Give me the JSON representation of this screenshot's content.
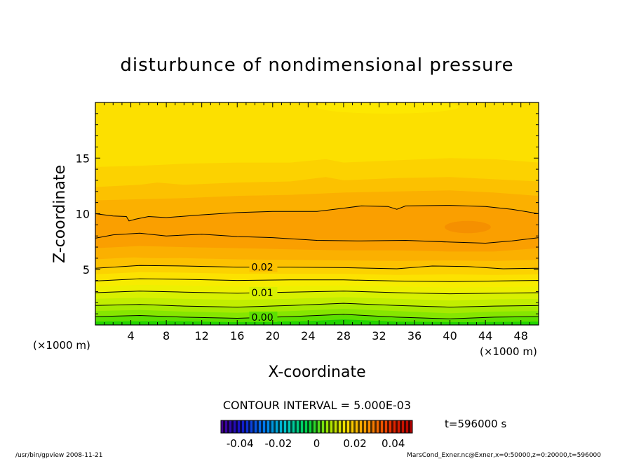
{
  "chart_data": {
    "type": "heatmap",
    "subtype": "filled-contour",
    "title": "disturbunce of nondimensional pressure",
    "xlabel": "X-coordinate",
    "ylabel": "Z-coordinate",
    "x_unit_label": "(×1000 m)",
    "y_unit_label": "(×1000 m)",
    "xlim": [
      0,
      50
    ],
    "ylim": [
      0,
      20
    ],
    "x_ticks": [
      4,
      8,
      12,
      16,
      20,
      24,
      28,
      32,
      36,
      40,
      44,
      48
    ],
    "y_ticks": [
      5,
      10,
      15
    ],
    "contour_interval_text": "CONTOUR INTERVAL = 5.000E-03",
    "time_label": "t=596000 s",
    "colorbar": {
      "ticks": [
        "-0.04",
        "-0.02",
        "0",
        "0.02",
        "0.04"
      ],
      "range": [
        -0.05,
        0.05
      ]
    },
    "contour_labels": [
      {
        "text": "0.02",
        "x": 17.6,
        "z": 5.2
      },
      {
        "text": "0.01",
        "x": 17.6,
        "z": 2.9
      },
      {
        "text": "0.00",
        "x": 17.6,
        "z": 0.7
      }
    ],
    "contours": [
      {
        "level": 0.0,
        "points": [
          [
            0,
            0.75
          ],
          [
            5,
            0.85
          ],
          [
            10,
            0.7
          ],
          [
            16,
            0.6
          ],
          [
            22,
            0.75
          ],
          [
            28,
            0.95
          ],
          [
            34,
            0.7
          ],
          [
            40,
            0.55
          ],
          [
            45,
            0.7
          ],
          [
            50,
            0.75
          ]
        ]
      },
      {
        "level": 0.005,
        "points": [
          [
            0,
            1.75
          ],
          [
            5,
            1.85
          ],
          [
            10,
            1.7
          ],
          [
            16,
            1.6
          ],
          [
            22,
            1.75
          ],
          [
            28,
            1.95
          ],
          [
            34,
            1.75
          ],
          [
            40,
            1.6
          ],
          [
            45,
            1.7
          ],
          [
            50,
            1.75
          ]
        ]
      },
      {
        "level": 0.01,
        "points": [
          [
            0,
            2.9
          ],
          [
            5,
            3.05
          ],
          [
            10,
            2.95
          ],
          [
            16,
            2.85
          ],
          [
            22,
            2.95
          ],
          [
            28,
            3.05
          ],
          [
            34,
            2.9
          ],
          [
            40,
            2.8
          ],
          [
            45,
            2.85
          ],
          [
            50,
            2.9
          ]
        ]
      },
      {
        "level": 0.015,
        "points": [
          [
            0,
            3.95
          ],
          [
            5,
            4.15
          ],
          [
            10,
            4.1
          ],
          [
            16,
            4.0
          ],
          [
            22,
            4.05
          ],
          [
            28,
            4.05
          ],
          [
            34,
            3.95
          ],
          [
            40,
            3.9
          ],
          [
            45,
            3.95
          ],
          [
            50,
            4.0
          ]
        ]
      },
      {
        "level": 0.02,
        "points": [
          [
            0,
            5.1
          ],
          [
            5,
            5.35
          ],
          [
            10,
            5.3
          ],
          [
            16,
            5.2
          ],
          [
            22,
            5.2
          ],
          [
            28,
            5.15
          ],
          [
            34,
            5.05
          ],
          [
            38,
            5.3
          ],
          [
            42,
            5.25
          ],
          [
            46,
            5.05
          ],
          [
            50,
            5.1
          ]
        ]
      },
      {
        "level": 0.025,
        "points": [
          [
            0,
            7.8
          ],
          [
            2,
            8.1
          ],
          [
            5,
            8.25
          ],
          [
            8,
            8.0
          ],
          [
            12,
            8.15
          ],
          [
            16,
            7.95
          ],
          [
            20,
            7.85
          ],
          [
            25,
            7.6
          ],
          [
            30,
            7.55
          ],
          [
            35,
            7.6
          ],
          [
            40,
            7.45
          ],
          [
            44,
            7.35
          ],
          [
            47,
            7.55
          ],
          [
            50,
            7.85
          ]
        ]
      },
      {
        "level": 0.025,
        "points": [
          [
            0,
            10.0
          ],
          [
            2,
            9.8
          ],
          [
            3.5,
            9.75
          ],
          [
            3.8,
            9.35
          ],
          [
            4.5,
            9.5
          ],
          [
            6,
            9.75
          ],
          [
            8,
            9.65
          ],
          [
            12,
            9.9
          ],
          [
            16,
            10.1
          ],
          [
            20,
            10.2
          ],
          [
            25,
            10.2
          ],
          [
            28,
            10.5
          ],
          [
            30,
            10.7
          ],
          [
            33,
            10.65
          ],
          [
            34,
            10.4
          ],
          [
            35,
            10.7
          ],
          [
            40,
            10.75
          ],
          [
            44,
            10.65
          ],
          [
            47,
            10.4
          ],
          [
            50,
            10.0
          ]
        ]
      }
    ],
    "filled_bands": [
      {
        "level": -0.005,
        "color": "#22d400",
        "upper": [
          [
            0,
            0.3
          ],
          [
            8,
            0.35
          ],
          [
            16,
            0.25
          ],
          [
            24,
            0.35
          ],
          [
            28,
            0.5
          ],
          [
            34,
            0.3
          ],
          [
            42,
            0.25
          ],
          [
            50,
            0.3
          ]
        ]
      },
      {
        "level": 0.0,
        "color": "#5ce000",
        "upper": [
          [
            0,
            0.75
          ],
          [
            5,
            0.85
          ],
          [
            10,
            0.7
          ],
          [
            16,
            0.6
          ],
          [
            22,
            0.75
          ],
          [
            28,
            0.95
          ],
          [
            34,
            0.7
          ],
          [
            40,
            0.55
          ],
          [
            45,
            0.7
          ],
          [
            50,
            0.75
          ]
        ]
      },
      {
        "level": 0.0025,
        "color": "#86e600",
        "upper": [
          [
            0,
            1.25
          ],
          [
            5,
            1.35
          ],
          [
            10,
            1.2
          ],
          [
            16,
            1.1
          ],
          [
            22,
            1.25
          ],
          [
            28,
            1.45
          ],
          [
            34,
            1.25
          ],
          [
            40,
            1.05
          ],
          [
            45,
            1.2
          ],
          [
            50,
            1.25
          ]
        ]
      },
      {
        "level": 0.005,
        "color": "#a6ea00",
        "upper": [
          [
            0,
            1.75
          ],
          [
            5,
            1.85
          ],
          [
            10,
            1.7
          ],
          [
            16,
            1.6
          ],
          [
            22,
            1.75
          ],
          [
            28,
            1.95
          ],
          [
            34,
            1.75
          ],
          [
            40,
            1.6
          ],
          [
            45,
            1.7
          ],
          [
            50,
            1.75
          ]
        ]
      },
      {
        "level": 0.0075,
        "color": "#c2ee00",
        "upper": [
          [
            0,
            2.35
          ],
          [
            5,
            2.45
          ],
          [
            10,
            2.35
          ],
          [
            16,
            2.25
          ],
          [
            22,
            2.35
          ],
          [
            28,
            2.5
          ],
          [
            34,
            2.35
          ],
          [
            40,
            2.2
          ],
          [
            45,
            2.3
          ],
          [
            50,
            2.35
          ]
        ]
      },
      {
        "level": 0.01,
        "color": "#d8f000",
        "upper": [
          [
            0,
            2.9
          ],
          [
            5,
            3.05
          ],
          [
            10,
            2.95
          ],
          [
            16,
            2.85
          ],
          [
            22,
            2.95
          ],
          [
            28,
            3.05
          ],
          [
            34,
            2.9
          ],
          [
            40,
            2.8
          ],
          [
            45,
            2.85
          ],
          [
            50,
            2.9
          ]
        ]
      },
      {
        "level": 0.0125,
        "color": "#eef000",
        "upper": [
          [
            0,
            3.45
          ],
          [
            5,
            3.6
          ],
          [
            10,
            3.55
          ],
          [
            16,
            3.45
          ],
          [
            22,
            3.5
          ],
          [
            28,
            3.55
          ],
          [
            34,
            3.45
          ],
          [
            40,
            3.35
          ],
          [
            45,
            3.4
          ],
          [
            50,
            3.45
          ]
        ]
      },
      {
        "level": 0.015,
        "color": "#f7ec00",
        "upper": [
          [
            0,
            3.95
          ],
          [
            5,
            4.15
          ],
          [
            10,
            4.1
          ],
          [
            16,
            4.0
          ],
          [
            22,
            4.05
          ],
          [
            28,
            4.05
          ],
          [
            34,
            3.95
          ],
          [
            40,
            3.9
          ],
          [
            45,
            3.95
          ],
          [
            50,
            4.0
          ]
        ]
      },
      {
        "level": 0.0175,
        "color": "#fce200",
        "upper": [
          [
            0,
            4.55
          ],
          [
            5,
            4.75
          ],
          [
            10,
            4.7
          ],
          [
            16,
            4.6
          ],
          [
            22,
            4.6
          ],
          [
            28,
            4.6
          ],
          [
            34,
            4.5
          ],
          [
            40,
            4.55
          ],
          [
            45,
            4.5
          ],
          [
            50,
            4.55
          ]
        ]
      },
      {
        "level": 0.02,
        "color": "#fcd200",
        "upper": [
          [
            0,
            5.1
          ],
          [
            5,
            5.35
          ],
          [
            10,
            5.3
          ],
          [
            16,
            5.2
          ],
          [
            22,
            5.2
          ],
          [
            28,
            5.15
          ],
          [
            34,
            5.05
          ],
          [
            38,
            5.3
          ],
          [
            42,
            5.25
          ],
          [
            46,
            5.05
          ],
          [
            50,
            5.1
          ]
        ]
      },
      {
        "level": 0.0215,
        "color": "#fcc100",
        "upper": [
          [
            0,
            5.9
          ],
          [
            5,
            6.1
          ],
          [
            10,
            6.0
          ],
          [
            16,
            5.9
          ],
          [
            22,
            5.85
          ],
          [
            28,
            5.8
          ],
          [
            34,
            5.75
          ],
          [
            40,
            5.8
          ],
          [
            45,
            5.75
          ],
          [
            50,
            5.85
          ]
        ]
      },
      {
        "level": 0.023,
        "color": "#fbb000",
        "upper": [
          [
            0,
            6.9
          ],
          [
            5,
            7.1
          ],
          [
            10,
            7.0
          ],
          [
            16,
            6.9
          ],
          [
            22,
            6.8
          ],
          [
            28,
            6.7
          ],
          [
            34,
            6.7
          ],
          [
            40,
            6.6
          ],
          [
            45,
            6.6
          ],
          [
            50,
            6.9
          ]
        ]
      },
      {
        "level": 0.025,
        "color": "#fa9f00",
        "upper": [
          [
            0,
            10.0
          ],
          [
            3,
            9.8
          ],
          [
            4,
            9.4
          ],
          [
            6,
            9.75
          ],
          [
            8,
            9.65
          ],
          [
            12,
            9.9
          ],
          [
            16,
            10.1
          ],
          [
            20,
            10.2
          ],
          [
            25,
            10.2
          ],
          [
            28,
            10.5
          ],
          [
            30,
            10.7
          ],
          [
            33,
            10.65
          ],
          [
            34,
            10.4
          ],
          [
            35,
            10.7
          ],
          [
            40,
            10.75
          ],
          [
            44,
            10.65
          ],
          [
            47,
            10.4
          ],
          [
            50,
            10.0
          ]
        ]
      },
      {
        "level": 0.023,
        "color": "#fbb000",
        "upper": [
          [
            0,
            11.2
          ],
          [
            5,
            11.3
          ],
          [
            10,
            11.4
          ],
          [
            16,
            11.6
          ],
          [
            22,
            11.7
          ],
          [
            28,
            11.9
          ],
          [
            34,
            12.0
          ],
          [
            40,
            12.1
          ],
          [
            45,
            11.9
          ],
          [
            50,
            11.6
          ]
        ]
      },
      {
        "level": 0.0215,
        "color": "#fcc100",
        "upper": [
          [
            0,
            12.4
          ],
          [
            5,
            12.6
          ],
          [
            7,
            12.8
          ],
          [
            10,
            12.6
          ],
          [
            16,
            12.8
          ],
          [
            22,
            12.9
          ],
          [
            26,
            13.3
          ],
          [
            28,
            13.0
          ],
          [
            34,
            13.2
          ],
          [
            40,
            13.3
          ],
          [
            45,
            13.1
          ],
          [
            50,
            12.9
          ]
        ]
      },
      {
        "level": 0.02,
        "color": "#fcd200",
        "upper": [
          [
            0,
            14.2
          ],
          [
            5,
            14.3
          ],
          [
            10,
            14.5
          ],
          [
            16,
            14.6
          ],
          [
            22,
            14.6
          ],
          [
            26,
            14.9
          ],
          [
            28,
            14.6
          ],
          [
            34,
            14.8
          ],
          [
            40,
            15.0
          ],
          [
            45,
            14.9
          ],
          [
            50,
            14.6
          ]
        ]
      },
      {
        "level": 0.0175,
        "color": "#fce000",
        "upper": [
          [
            0,
            20
          ],
          [
            50,
            20
          ]
        ]
      }
    ],
    "blobs": [
      {
        "x": 42,
        "z": 8.8,
        "rx": 2.6,
        "rz": 0.55,
        "color": "#f59000"
      },
      {
        "x": 7.5,
        "z": 6.35,
        "rx": 5.0,
        "rz": 0.35,
        "color": "#fbb000"
      },
      {
        "x": 33,
        "z": 19.6,
        "rx": 8.0,
        "rz": 0.6,
        "color": "#fde800"
      }
    ]
  },
  "footer": {
    "left": "/usr/bin/gpview   2008-11-21",
    "right": "MarsCond_Exner.nc@Exner,x=0:50000,z=0:20000,t=596000"
  }
}
